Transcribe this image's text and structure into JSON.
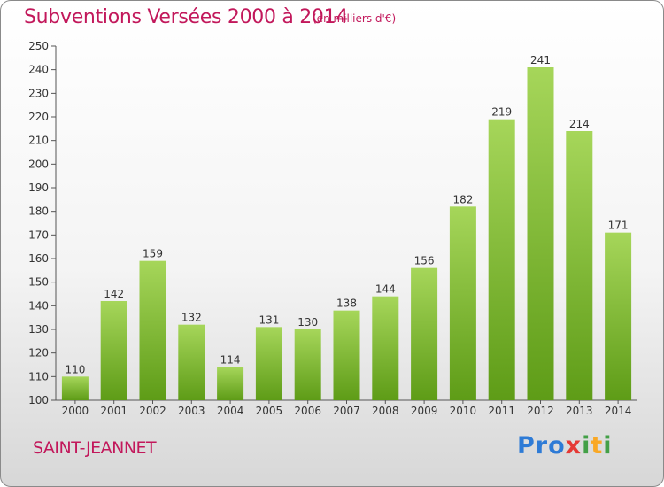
{
  "header": {
    "title": "Subventions Versées 2000 à 2014",
    "unit": "(en milliers d'€)"
  },
  "footer": {
    "city": "SAINT-JEANNET",
    "logo_parts": [
      {
        "text": "Pro",
        "color": "#2e7bd6"
      },
      {
        "text": "x",
        "color": "#e53935"
      },
      {
        "text": "i",
        "color": "#43a047"
      },
      {
        "text": "t",
        "color": "#f9a825"
      },
      {
        "text": "i",
        "color": "#43a047"
      }
    ]
  },
  "colors": {
    "accent": "#c2185b",
    "bar_light": "#a6d65a",
    "bar_dark": "#5e9c17"
  },
  "chart_data": {
    "type": "bar",
    "title": "Subventions Versées 2000 à 2014",
    "subtitle": "(en milliers d'€)",
    "xlabel": "",
    "ylabel": "",
    "categories": [
      "2000",
      "2001",
      "2002",
      "2003",
      "2004",
      "2005",
      "2006",
      "2007",
      "2008",
      "2009",
      "2010",
      "2011",
      "2012",
      "2013",
      "2014"
    ],
    "values": [
      110,
      142,
      159,
      132,
      114,
      131,
      130,
      138,
      144,
      156,
      182,
      219,
      241,
      214,
      171
    ],
    "value_labels": [
      "110",
      "142",
      "159",
      "132",
      "114",
      "131",
      "130",
      "138",
      "144",
      "156",
      "182",
      "219",
      "241",
      "214",
      "171"
    ],
    "ylim": [
      100,
      250
    ],
    "yticks": [
      "100",
      "110",
      "120",
      "130",
      "140",
      "150",
      "160",
      "170",
      "180",
      "190",
      "200",
      "210",
      "220",
      "230",
      "240",
      "250"
    ],
    "grid": false,
    "legend": "none"
  }
}
